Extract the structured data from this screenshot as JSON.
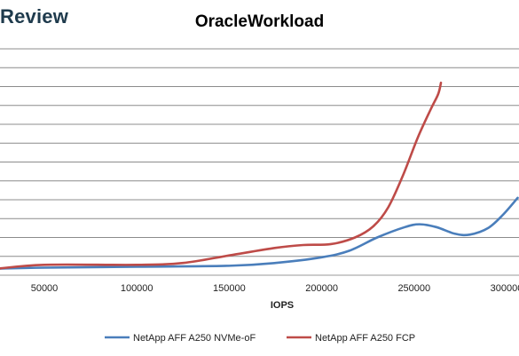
{
  "brand": "Review",
  "chart_data": {
    "type": "line",
    "title": "OracleWorkload",
    "xlabel": "IOPS",
    "ylabel": "",
    "xlim": [
      25000,
      306000
    ],
    "ylim": [
      0,
      12
    ],
    "x_ticks": [
      50000,
      100000,
      150000,
      200000,
      250000,
      300000
    ],
    "x_tick_labels": [
      "50000",
      "100000",
      "150000",
      "200000",
      "250000",
      "300000"
    ],
    "grid": true,
    "legend_position": "bottom",
    "series": [
      {
        "name": "NetApp AFF A250 NVMe-oF",
        "color": "#4a7ebb",
        "points": [
          [
            25000,
            0.35
          ],
          [
            50000,
            0.4
          ],
          [
            100000,
            0.45
          ],
          [
            150000,
            0.5
          ],
          [
            175000,
            0.65
          ],
          [
            200000,
            0.95
          ],
          [
            215000,
            1.3
          ],
          [
            230000,
            2.0
          ],
          [
            245000,
            2.55
          ],
          [
            253000,
            2.7
          ],
          [
            262000,
            2.55
          ],
          [
            272000,
            2.2
          ],
          [
            280000,
            2.15
          ],
          [
            290000,
            2.5
          ],
          [
            298000,
            3.2
          ],
          [
            306000,
            4.1
          ]
        ]
      },
      {
        "name": "NetApp AFF A250 FCP",
        "color": "#be4b48",
        "points": [
          [
            25000,
            0.35
          ],
          [
            50000,
            0.55
          ],
          [
            100000,
            0.55
          ],
          [
            125000,
            0.65
          ],
          [
            150000,
            1.05
          ],
          [
            175000,
            1.45
          ],
          [
            190000,
            1.6
          ],
          [
            205000,
            1.65
          ],
          [
            218000,
            2.0
          ],
          [
            228000,
            2.6
          ],
          [
            236000,
            3.6
          ],
          [
            244000,
            5.3
          ],
          [
            252000,
            7.3
          ],
          [
            259000,
            8.8
          ],
          [
            263000,
            9.6
          ],
          [
            264500,
            10.2
          ]
        ]
      }
    ]
  }
}
